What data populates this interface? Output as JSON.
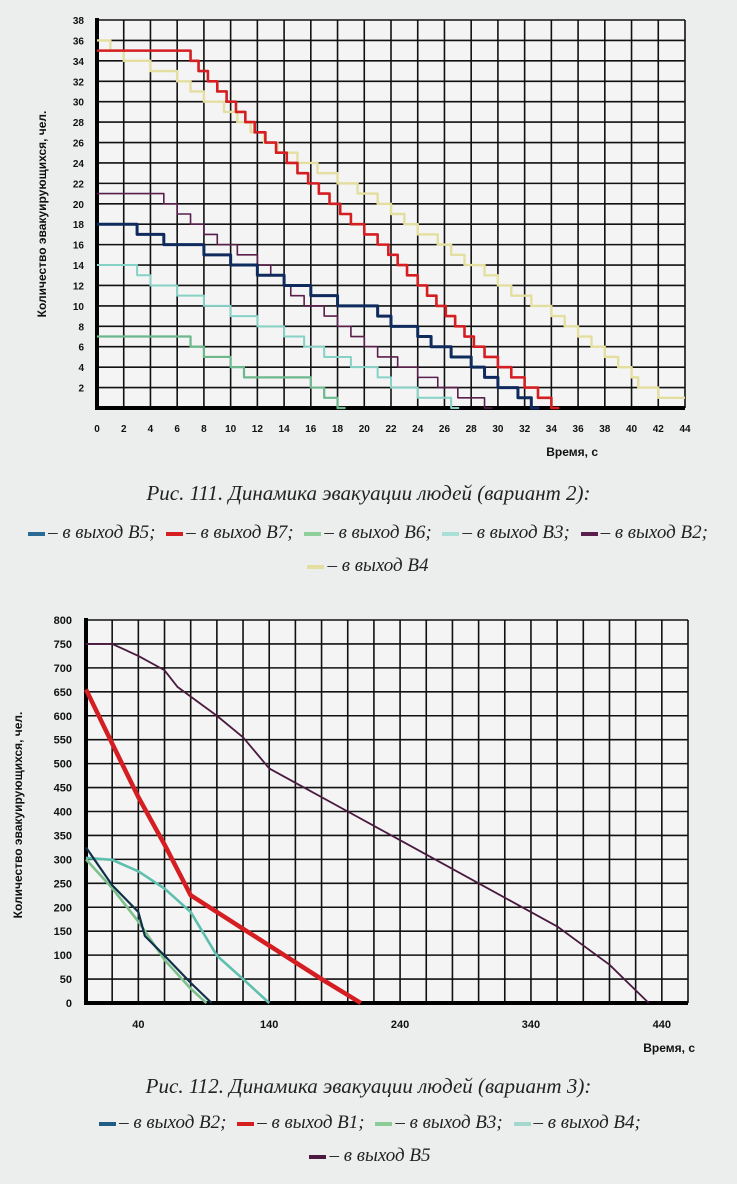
{
  "chart_data": [
    {
      "type": "line",
      "step": true,
      "ylabel": "Количество эвакуирующихся, чел.",
      "xlabel": "Время, с",
      "xlim": [
        0,
        44
      ],
      "ylim": [
        0,
        38
      ],
      "xticks": [
        0,
        2,
        4,
        6,
        8,
        10,
        12,
        14,
        16,
        18,
        20,
        22,
        24,
        26,
        28,
        30,
        32,
        34,
        36,
        38,
        40,
        42,
        44
      ],
      "yticks": [
        2,
        4,
        6,
        8,
        10,
        12,
        14,
        16,
        18,
        20,
        22,
        24,
        26,
        28,
        30,
        32,
        34,
        36,
        38
      ],
      "grid": true,
      "caption": "Рис. 111. Динамика эвакуации людей (вариант 2):",
      "series": [
        {
          "name": "в выход В4",
          "color": "#e4dfa0",
          "points": [
            [
              0,
              36
            ],
            [
              1,
              35
            ],
            [
              2,
              34
            ],
            [
              4,
              33
            ],
            [
              6,
              32
            ],
            [
              7,
              31
            ],
            [
              8,
              30
            ],
            [
              9.5,
              29
            ],
            [
              10.5,
              28
            ],
            [
              11.5,
              27
            ],
            [
              12.5,
              26
            ],
            [
              13.5,
              25
            ],
            [
              15,
              24
            ],
            [
              16.5,
              23
            ],
            [
              18,
              22
            ],
            [
              19.5,
              21
            ],
            [
              21,
              20
            ],
            [
              22,
              19
            ],
            [
              23,
              18
            ],
            [
              24,
              17
            ],
            [
              25.5,
              16
            ],
            [
              26.5,
              15
            ],
            [
              27.5,
              14
            ],
            [
              29,
              13
            ],
            [
              30,
              12
            ],
            [
              31,
              11
            ],
            [
              32.5,
              10
            ],
            [
              34,
              9
            ],
            [
              35,
              8
            ],
            [
              36,
              7
            ],
            [
              37,
              6
            ],
            [
              38,
              5
            ],
            [
              39,
              4
            ],
            [
              40,
              3
            ],
            [
              40.5,
              2
            ],
            [
              42,
              1
            ],
            [
              44,
              1
            ]
          ]
        },
        {
          "name": "в выход В7",
          "color": "#d41e22",
          "points": [
            [
              0,
              35
            ],
            [
              7,
              34
            ],
            [
              7.6,
              33
            ],
            [
              8.3,
              32
            ],
            [
              9,
              31
            ],
            [
              9.7,
              30
            ],
            [
              10.4,
              29
            ],
            [
              11.1,
              28
            ],
            [
              11.8,
              27
            ],
            [
              12.6,
              26
            ],
            [
              13.4,
              25
            ],
            [
              14.2,
              24
            ],
            [
              15,
              23
            ],
            [
              15.8,
              22
            ],
            [
              16.6,
              21
            ],
            [
              17.4,
              20
            ],
            [
              18.2,
              19
            ],
            [
              19,
              18
            ],
            [
              20,
              17
            ],
            [
              21,
              16
            ],
            [
              21.8,
              15
            ],
            [
              22.5,
              14
            ],
            [
              23.2,
              13
            ],
            [
              24,
              12
            ],
            [
              24.7,
              11
            ],
            [
              25.4,
              10
            ],
            [
              26.1,
              9
            ],
            [
              26.8,
              8
            ],
            [
              27.5,
              7
            ],
            [
              28.2,
              6
            ],
            [
              29,
              5
            ],
            [
              30,
              4
            ],
            [
              31,
              3
            ],
            [
              32,
              2
            ],
            [
              33,
              1
            ],
            [
              34,
              0
            ]
          ]
        },
        {
          "name": "в выход В2",
          "color": "#5a1f4c",
          "points": [
            [
              0,
              21
            ],
            [
              5,
              20
            ],
            [
              6,
              19
            ],
            [
              7,
              18
            ],
            [
              8,
              17
            ],
            [
              9,
              16
            ],
            [
              10.5,
              15
            ],
            [
              12,
              14
            ],
            [
              13,
              13
            ],
            [
              14,
              12
            ],
            [
              14.5,
              11
            ],
            [
              15.5,
              10
            ],
            [
              17,
              9
            ],
            [
              18,
              8
            ],
            [
              19,
              7
            ],
            [
              20,
              6
            ],
            [
              21,
              5
            ],
            [
              22.5,
              4
            ],
            [
              24,
              3
            ],
            [
              25.5,
              2
            ],
            [
              27,
              1
            ],
            [
              29,
              0
            ]
          ]
        },
        {
          "name": "в выход В5",
          "color": "#0f2a5c",
          "points": [
            [
              0,
              18
            ],
            [
              3,
              17
            ],
            [
              5,
              16
            ],
            [
              8,
              15
            ],
            [
              10,
              14
            ],
            [
              12,
              13
            ],
            [
              14,
              12
            ],
            [
              16,
              11
            ],
            [
              18,
              10
            ],
            [
              21,
              9
            ],
            [
              22,
              8
            ],
            [
              24,
              7
            ],
            [
              25,
              6
            ],
            [
              26.5,
              5
            ],
            [
              28,
              4
            ],
            [
              29,
              3
            ],
            [
              30,
              2
            ],
            [
              31.5,
              1
            ],
            [
              32.5,
              0
            ]
          ]
        },
        {
          "name": "в выход В3",
          "color": "#86d2c6",
          "points": [
            [
              0,
              14
            ],
            [
              3,
              13
            ],
            [
              4,
              12
            ],
            [
              6,
              11
            ],
            [
              8,
              10
            ],
            [
              10,
              9
            ],
            [
              12,
              8
            ],
            [
              14,
              7
            ],
            [
              15.5,
              6
            ],
            [
              17,
              5
            ],
            [
              19,
              4
            ],
            [
              21,
              3
            ],
            [
              22,
              2
            ],
            [
              24,
              1
            ],
            [
              26.5,
              0
            ]
          ]
        },
        {
          "name": "в выход В6",
          "color": "#6cb88c",
          "points": [
            [
              0,
              7
            ],
            [
              7,
              6
            ],
            [
              8,
              5
            ],
            [
              10,
              4
            ],
            [
              11,
              3
            ],
            [
              16,
              2
            ],
            [
              17,
              1
            ],
            [
              18,
              0
            ]
          ]
        }
      ],
      "legend": [
        {
          "label": "– в выход В5;",
          "color": "#2a6a96"
        },
        {
          "label": "– в выход В7;",
          "color": "#d41e22"
        },
        {
          "label": "– в выход В6;",
          "color": "#8fd09a"
        },
        {
          "label": "– в выход В3;",
          "color": "#a8e0d6"
        },
        {
          "label": "– в выход В2;",
          "color": "#5a1f4c"
        },
        {
          "label": "– в выход В4",
          "color": "#e4dfa0"
        }
      ]
    },
    {
      "type": "line",
      "ylabel": "Количество эвакуирующихся, чел.",
      "xlabel": "Время, с",
      "xlim": [
        0,
        460
      ],
      "ylim": [
        0,
        800
      ],
      "xticks": [
        40,
        140,
        240,
        340,
        440
      ],
      "yticks": [
        0,
        50,
        100,
        150,
        200,
        250,
        300,
        350,
        400,
        450,
        500,
        550,
        600,
        650,
        700,
        750,
        800
      ],
      "grid": true,
      "caption": "Рис. 112. Динамика эвакуации людей (вариант 3):",
      "series": [
        {
          "name": "в выход В5",
          "color": "#4a1a40",
          "points": [
            [
              0,
              750
            ],
            [
              20,
              750
            ],
            [
              40,
              725
            ],
            [
              60,
              695
            ],
            [
              70,
              660
            ],
            [
              100,
              600
            ],
            [
              120,
              555
            ],
            [
              140,
              490
            ],
            [
              160,
              460
            ],
            [
              200,
              400
            ],
            [
              240,
              340
            ],
            [
              280,
              280
            ],
            [
              320,
              220
            ],
            [
              360,
              160
            ],
            [
              400,
              80
            ],
            [
              430,
              0
            ]
          ]
        },
        {
          "name": "в выход В1",
          "color": "#d41e22",
          "points": [
            [
              0,
              655
            ],
            [
              20,
              542
            ],
            [
              40,
              430
            ],
            [
              60,
              331
            ],
            [
              80,
              225
            ],
            [
              100,
              190
            ],
            [
              120,
              155
            ],
            [
              140,
              120
            ],
            [
              160,
              85
            ],
            [
              180,
              50
            ],
            [
              210,
              0
            ]
          ]
        },
        {
          "name": "в выход В4",
          "color": "#5fbfae",
          "points": [
            [
              0,
              303
            ],
            [
              20,
              299
            ],
            [
              40,
              275
            ],
            [
              60,
              239
            ],
            [
              80,
              190
            ],
            [
              100,
              99
            ],
            [
              120,
              50
            ],
            [
              140,
              0
            ]
          ]
        },
        {
          "name": "в выход В3",
          "color": "#7cc08c",
          "points": [
            [
              0,
              300
            ],
            [
              20,
              240
            ],
            [
              40,
              170
            ],
            [
              60,
              90
            ],
            [
              80,
              30
            ],
            [
              92,
              0
            ]
          ]
        },
        {
          "name": "в выход В2",
          "color": "#10304a",
          "points": [
            [
              0,
              325
            ],
            [
              20,
              246
            ],
            [
              40,
              190
            ],
            [
              45,
              140
            ],
            [
              60,
              99
            ],
            [
              80,
              42
            ],
            [
              96,
              0
            ]
          ]
        }
      ],
      "legend": [
        {
          "label": "– в выход В2;",
          "color": "#1f5c86"
        },
        {
          "label": "– в выход В1;",
          "color": "#d41e22"
        },
        {
          "label": "– в выход В3;",
          "color": "#8ccc96"
        },
        {
          "label": "– в выход В4;",
          "color": "#a4d8cc"
        },
        {
          "label": "– в выход В5",
          "color": "#4a1a40"
        }
      ]
    }
  ]
}
